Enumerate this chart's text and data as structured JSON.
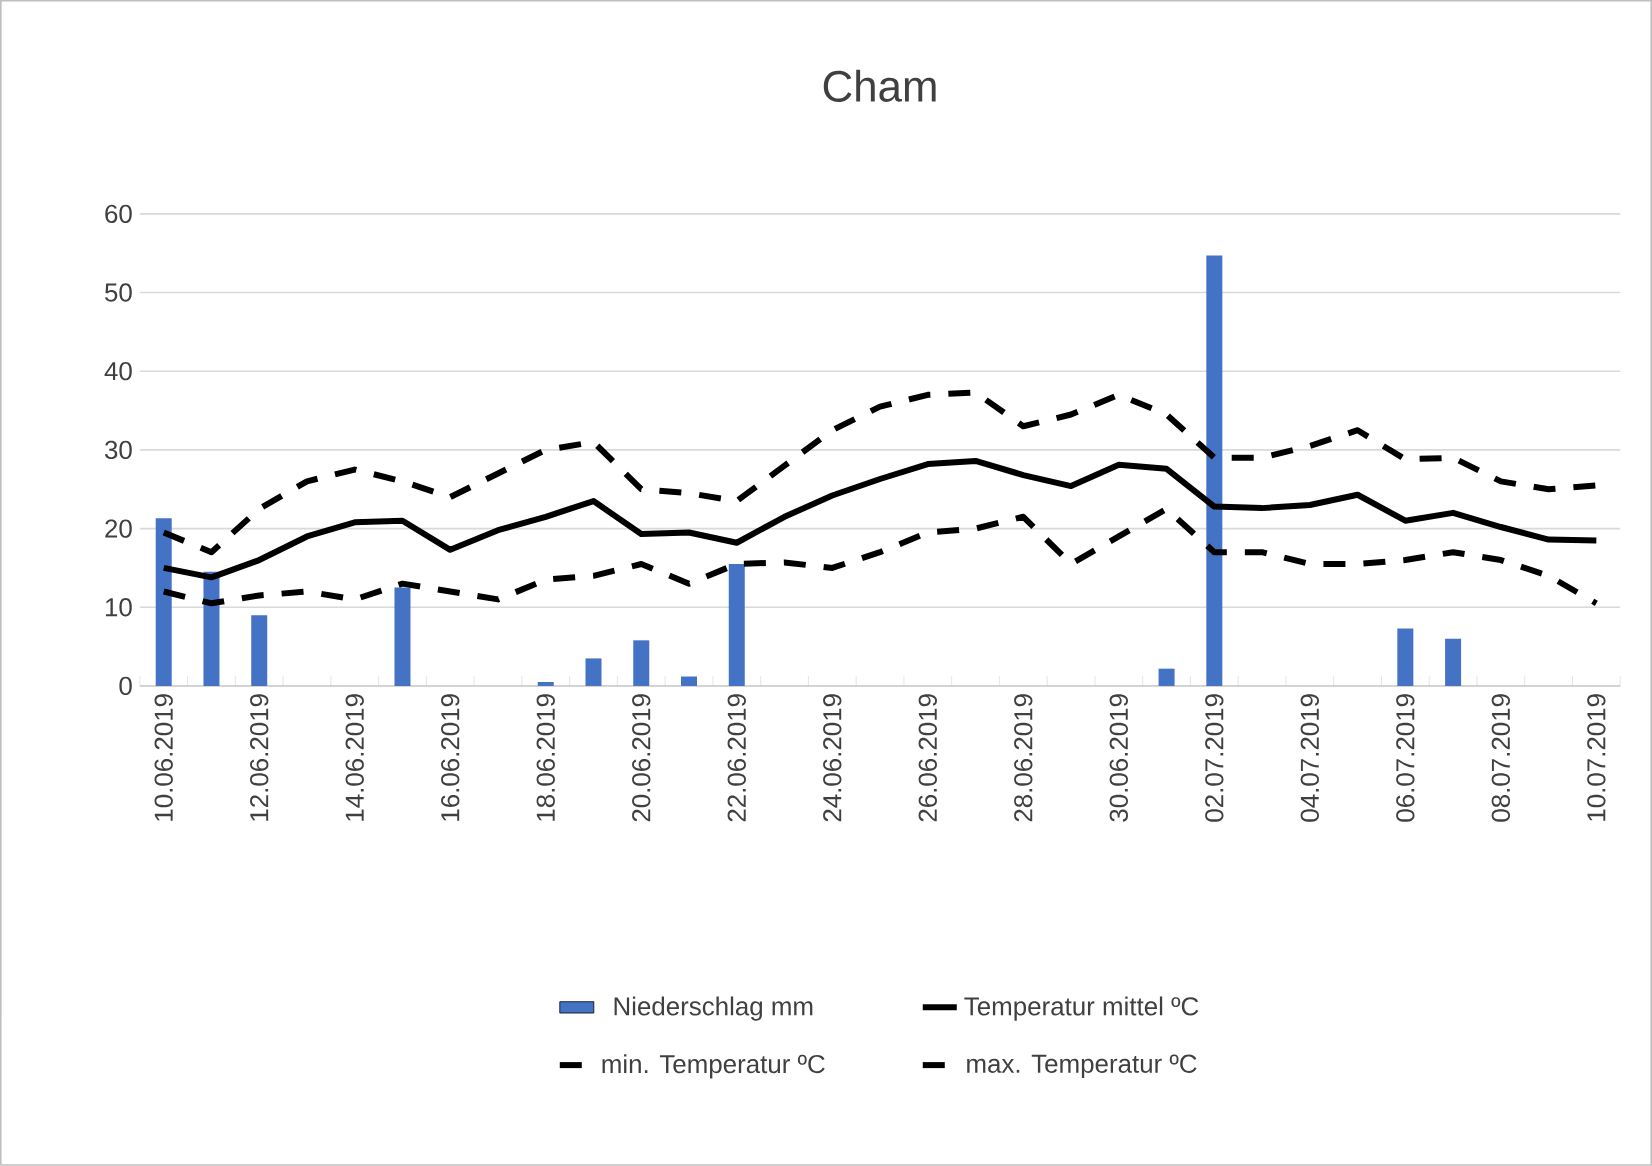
{
  "chart_data": {
    "type": "line",
    "title": "Cham",
    "categories": [
      "10.06.2019",
      null,
      "12.06.2019",
      null,
      "14.06.2019",
      null,
      "16.06.2019",
      null,
      "18.06.2019",
      null,
      "20.06.2019",
      null,
      "22.06.2019",
      null,
      "24.06.2019",
      null,
      "26.06.2019",
      null,
      "28.06.2019",
      null,
      "30.06.2019",
      null,
      "02.07.2019",
      null,
      "04.07.2019",
      null,
      "06.07.2019",
      null,
      "08.07.2019",
      null,
      "10.07.2019"
    ],
    "series": [
      {
        "name": "Niederschlag mm",
        "type": "bar",
        "color": "#4472c4",
        "values": [
          21.3,
          14.5,
          9,
          0,
          0,
          12.5,
          0,
          0,
          0.5,
          3.5,
          5.8,
          1.2,
          15.5,
          0,
          0,
          0,
          0,
          0,
          0,
          0,
          0,
          2.2,
          54.7,
          0,
          0,
          0,
          7.3,
          6,
          0,
          0,
          0
        ]
      },
      {
        "name": "Temperatur mittel ºC",
        "color": "#000000",
        "line_style": "solid",
        "values": [
          15,
          13.8,
          16,
          19,
          20.8,
          21,
          17.3,
          19.8,
          21.5,
          23.5,
          19.3,
          19.5,
          18.2,
          21.5,
          24.2,
          26.3,
          28.2,
          28.6,
          26.8,
          25.4,
          28.1,
          27.6,
          22.8,
          22.6,
          23,
          24.3,
          21,
          22,
          20.2,
          18.6,
          18.5
        ]
      },
      {
        "name": "min. Temperatur ºC",
        "color": "#000000",
        "line_style": "dashed",
        "values": [
          12,
          10.5,
          11.5,
          12,
          11,
          13,
          12,
          11,
          13.5,
          14,
          15.5,
          13,
          15.5,
          15.7,
          15,
          17,
          19.5,
          20,
          21.5,
          15.5,
          19,
          22.5,
          17,
          17,
          15.5,
          15.5,
          16,
          17,
          16,
          14,
          10.5
        ]
      },
      {
        "name": "max. Temperatur ºC",
        "color": "#000000",
        "line_style": "dashed",
        "values": [
          19.5,
          17,
          22.5,
          26,
          27.5,
          26,
          24,
          27,
          30,
          31,
          25,
          24.5,
          23.5,
          28,
          32.5,
          35.5,
          37,
          37.3,
          33,
          34.5,
          37,
          34.5,
          29,
          29,
          30.5,
          32.5,
          28.8,
          29,
          26,
          25,
          25.5
        ]
      }
    ],
    "ylim": [
      0,
      60
    ],
    "yticks": [
      0,
      10,
      20,
      30,
      40,
      50,
      60
    ],
    "grid": "y",
    "legend": "bottom",
    "marker": "none"
  }
}
